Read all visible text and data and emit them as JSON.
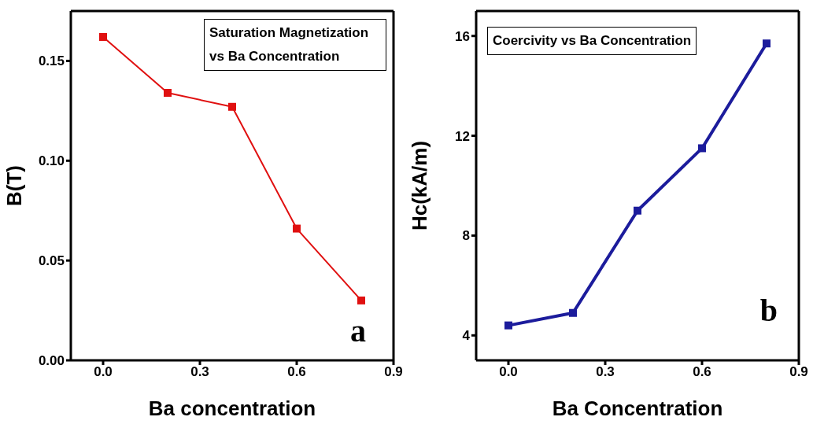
{
  "chart_data": [
    {
      "type": "line",
      "xlabel": "Ba concentration",
      "ylabel": "B(T)",
      "annotations": [
        "Saturation Magnetization vs Ba Concentration",
        "a"
      ],
      "x": [
        0,
        0.2,
        0.4,
        0.6,
        0.8
      ],
      "series": [
        {
          "color": "#e01010",
          "values": [
            0.162,
            0.134,
            0.127,
            0.066,
            0.03
          ]
        }
      ],
      "xlim": [
        -0.1,
        0.9
      ],
      "xticks": [
        {
          "value": 0,
          "label": "0.0"
        },
        0.3,
        0.6,
        0.9
      ],
      "ylim": [
        0,
        0.175
      ],
      "yticks": [
        {
          "value": 0,
          "label": "0.00"
        },
        0.05,
        {
          "value": 0.1,
          "label": "0.10"
        },
        0.15
      ],
      "grid": false,
      "legend": false,
      "marker": "square",
      "line_style": "solid"
    },
    {
      "type": "line",
      "xlabel": "Ba Concentration",
      "ylabel": "Hc(kA/m)",
      "annotations": [
        "Coercivity vs Ba Concentration",
        "b"
      ],
      "x": [
        0,
        0.2,
        0.4,
        0.6,
        0.8
      ],
      "series": [
        {
          "color": "#1c1c9c",
          "values": [
            4.4,
            4.9,
            9.0,
            11.5,
            15.7
          ]
        }
      ],
      "xlim": [
        -0.1,
        0.9
      ],
      "xticks": [
        {
          "value": 0,
          "label": "0.0"
        },
        0.3,
        0.6,
        0.9
      ],
      "ylim": [
        3,
        17
      ],
      "yticks": [
        4,
        8,
        12,
        16
      ],
      "grid": false,
      "legend": false,
      "marker": "square",
      "line_style": "solid"
    }
  ]
}
